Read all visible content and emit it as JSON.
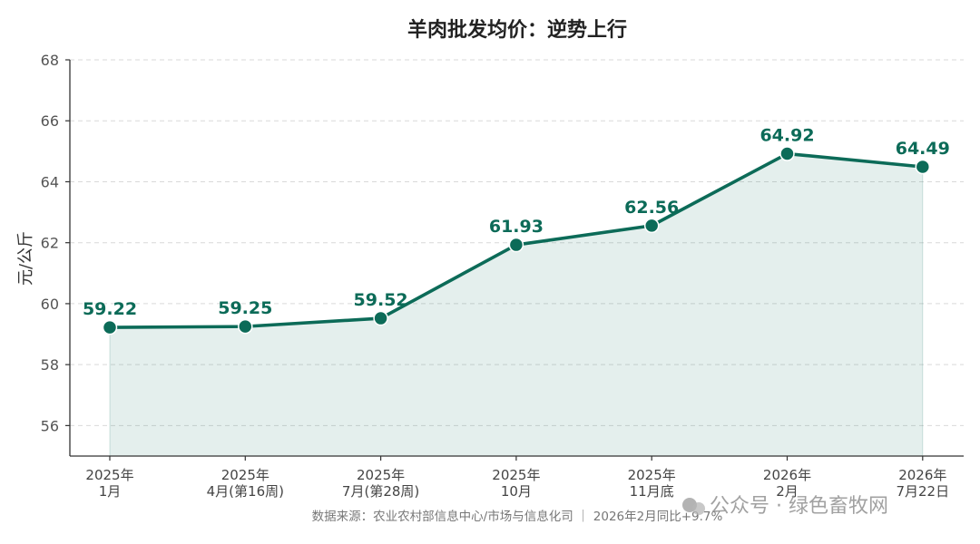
{
  "chart_data": {
    "type": "line",
    "title": "羊肉批发均价：逆势上行",
    "xlabel": "",
    "ylabel": "元/公斤",
    "categories": [
      [
        "2025年",
        "1月"
      ],
      [
        "2025年",
        "4月(第16周)"
      ],
      [
        "2025年",
        "7月(第28周)"
      ],
      [
        "2025年",
        "10月"
      ],
      [
        "2025年",
        "11月底"
      ],
      [
        "2026年",
        "2月"
      ],
      [
        "2026年",
        "7月22日"
      ]
    ],
    "series": [
      {
        "values": [
          59.22,
          59.25,
          59.52,
          61.93,
          62.56,
          64.92,
          64.49
        ]
      }
    ],
    "data_labels": [
      "59.22",
      "59.25",
      "59.52",
      "61.93",
      "62.56",
      "64.92",
      "64.49"
    ],
    "ylim": [
      55,
      68
    ],
    "yticks": [
      56,
      58,
      60,
      62,
      64,
      66,
      68
    ],
    "grid": "horizontal dashed",
    "area_fill": true
  },
  "colors": {
    "line": "#0c6b58",
    "fill": "#0c6b58",
    "grid": "#d9d9d9",
    "axis": "#333333"
  },
  "source_note": "数据来源：农业农村部信息中心/市场与信息化司 ｜ 2026年2月同比+9.7%",
  "watermark": {
    "icon": "wechat-icon",
    "text": "公众号 · 绿色畜牧网"
  }
}
